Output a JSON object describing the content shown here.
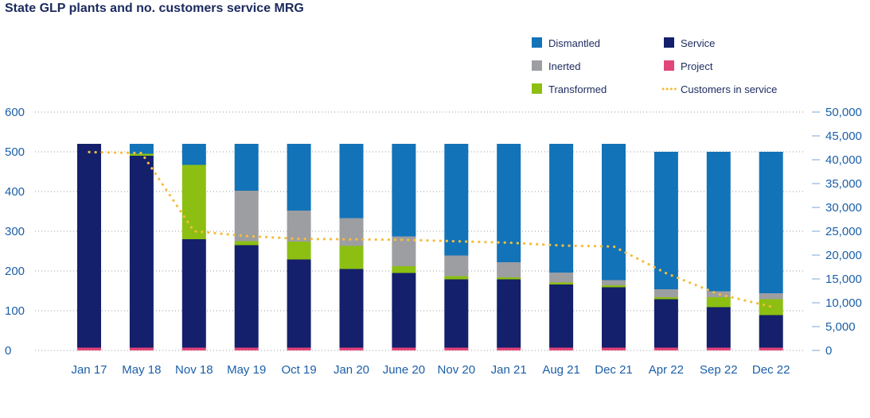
{
  "chart_data": {
    "type": "bar",
    "stacked": true,
    "title": "State GLP plants and no. customers service MRG",
    "categories": [
      "Jan 17",
      "May 18",
      "Nov 18",
      "May 19",
      "Oct 19",
      "Jan 20",
      "June 20",
      "Nov 20",
      "Jan 21",
      "Aug 21",
      "Dec 21",
      "Apr 22",
      "Sep 22",
      "Dec 22"
    ],
    "series": [
      {
        "name": "Project",
        "color": "#e2457a",
        "values": [
          7,
          7,
          7,
          7,
          7,
          7,
          7,
          7,
          7,
          7,
          7,
          7,
          7,
          7
        ]
      },
      {
        "name": "Service",
        "color": "#14206b",
        "values": [
          513,
          483,
          273,
          258,
          222,
          198,
          188,
          172,
          172,
          159,
          152,
          122,
          102,
          82
        ]
      },
      {
        "name": "Transformed",
        "color": "#8cbf12",
        "values": [
          0,
          5,
          187,
          10,
          45,
          58,
          17,
          8,
          5,
          5,
          5,
          5,
          25,
          40
        ]
      },
      {
        "name": "Inerted",
        "color": "#9d9ea2",
        "values": [
          0,
          0,
          0,
          127,
          78,
          70,
          75,
          52,
          38,
          25,
          13,
          20,
          15,
          15
        ]
      },
      {
        "name": "Dismantled",
        "color": "#1273b8",
        "values": [
          0,
          25,
          53,
          118,
          168,
          187,
          233,
          281,
          298,
          324,
          343,
          346,
          351,
          356
        ]
      }
    ],
    "line_series": {
      "name": "Customers in service",
      "color": "#f5bd3c",
      "axis": "right",
      "values": [
        41600,
        41400,
        25000,
        24000,
        23400,
        23300,
        23200,
        22900,
        22600,
        22000,
        21800,
        16200,
        11800,
        9200
      ]
    },
    "ylim_left": [
      0,
      600
    ],
    "ylim_right": [
      0,
      50000
    ],
    "yticks_left": [
      "0",
      "100",
      "200",
      "300",
      "400",
      "500",
      "600"
    ],
    "yticks_right": [
      "0",
      "5,000",
      "10,000",
      "15,000",
      "20,000",
      "25,000",
      "30,000",
      "35,000",
      "40,000",
      "45,000",
      "50,000"
    ],
    "legend_order": [
      "Dismantled",
      "Service",
      "Inerted",
      "Project",
      "Transformed",
      "Customers in service"
    ],
    "legend_position": "top-right",
    "grid": "dotted horizontal"
  }
}
